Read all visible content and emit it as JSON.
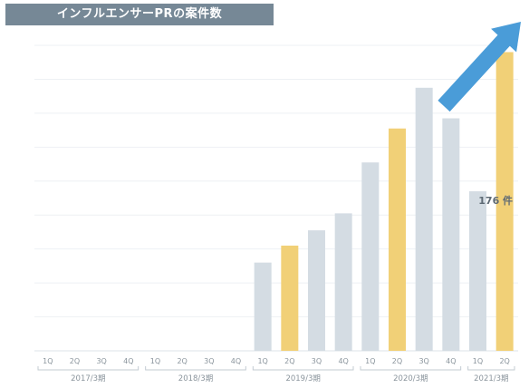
{
  "chart_data": {
    "type": "bar",
    "title": "インフルエンサーPRの案件数",
    "categories": [
      "1Q",
      "2Q",
      "3Q",
      "4Q",
      "1Q",
      "2Q",
      "3Q",
      "4Q",
      "1Q",
      "2Q",
      "3Q",
      "4Q",
      "1Q",
      "2Q",
      "3Q",
      "4Q",
      "1Q",
      "2Q"
    ],
    "groups": [
      {
        "label": "2017/3期",
        "count": 4
      },
      {
        "label": "2018/3期",
        "count": 4
      },
      {
        "label": "2019/3期",
        "count": 4
      },
      {
        "label": "2020/3期",
        "count": 4
      },
      {
        "label": "2021/3期",
        "count": 2
      }
    ],
    "values": [
      0,
      0,
      0,
      0,
      0,
      0,
      0,
      0,
      52,
      62,
      71,
      81,
      111,
      131,
      155,
      137,
      94,
      176
    ],
    "highlight_index": [
      9,
      13,
      17
    ],
    "colors": {
      "normal": "#d4dce3",
      "highlight": "#f1d077",
      "arrow": "#4a9cd8",
      "title_bg": "#768896"
    },
    "ylim": [
      0,
      180
    ],
    "grid": true,
    "annotation": {
      "text": "176 件",
      "index": 17
    },
    "trend_arrow": "up-right"
  }
}
